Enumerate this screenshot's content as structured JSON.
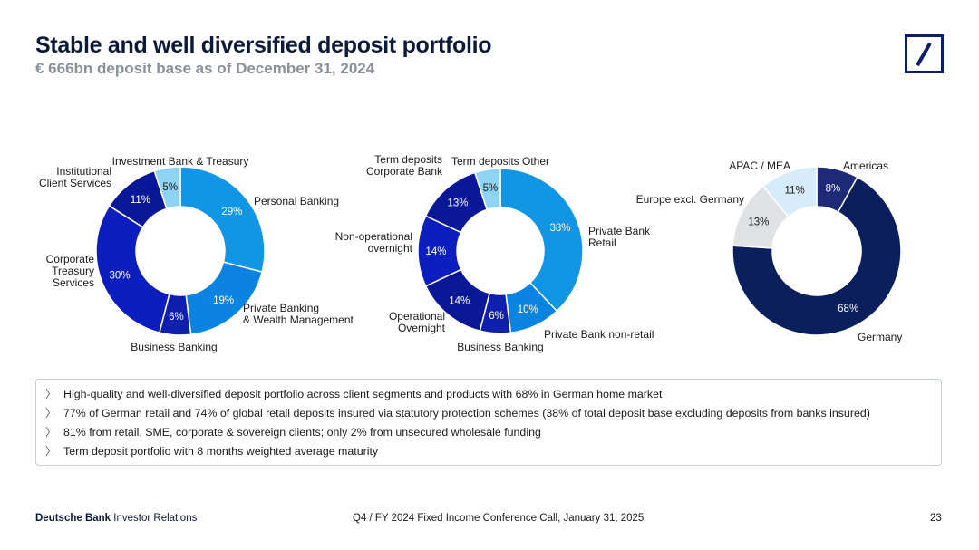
{
  "header": {
    "title": "Stable and well diversified deposit portfolio",
    "subtitle": "€ 666bn deposit base as of December 31, 2024"
  },
  "logo": {
    "icon": "deutsche-bank-logo-icon",
    "color": "#0c1f6e"
  },
  "chart_data": [
    {
      "type": "pie",
      "variant": "donut",
      "title": "",
      "labels": [
        "Personal Banking",
        "Private Banking\n& Wealth Management",
        "Business Banking",
        "Corporate\nTreasury\nServices",
        "Institutional\nClient Services",
        "Investment Bank & Treasury"
      ],
      "values": [
        29,
        19,
        6,
        30,
        11,
        5
      ],
      "value_labels": [
        "29%",
        "19%",
        "6%",
        "30%",
        "11%",
        "5%"
      ],
      "colors": [
        "#1196e6",
        "#0a84e0",
        "#0f1fae",
        "#0c1fbe",
        "#0a1898",
        "#8fd3f4"
      ]
    },
    {
      "type": "pie",
      "variant": "donut",
      "title": "",
      "labels": [
        "Private Bank\nRetail",
        "Private Bank non-retail",
        "Business Banking",
        "Operational\nOvernight",
        "Non-operational\novernight",
        "Term deposits\nCorporate Bank",
        "Term deposits Other"
      ],
      "values": [
        38,
        10,
        6,
        14,
        14,
        13,
        5
      ],
      "value_labels": [
        "38%",
        "10%",
        "6%",
        "14%",
        "14%",
        "13%",
        "5%"
      ],
      "colors": [
        "#1196e6",
        "#0a84e0",
        "#0f1fae",
        "#0a1898",
        "#0c1fbe",
        "#0a1898",
        "#8fd3f4"
      ]
    },
    {
      "type": "pie",
      "variant": "donut",
      "title": "",
      "labels": [
        "Americas",
        "Germany",
        "Europe excl. Germany",
        "APAC / MEA"
      ],
      "values": [
        8,
        68,
        13,
        11
      ],
      "value_labels": [
        "8%",
        "68%",
        "13%",
        "11%"
      ],
      "colors": [
        "#1e2a78",
        "#0a1f5c",
        "#dfe1e5",
        "#d6ecfb"
      ]
    }
  ],
  "notes": [
    "High-quality and well-diversified deposit portfolio across client segments and products with 68% in German home market",
    "77% of German retail and 74% of global retail deposits insured via statutory protection schemes (38% of total deposit base excluding deposits from banks insured)",
    "81% from retail, SME, corporate & sovereign clients; only 2% from unsecured wholesale funding",
    "Term deposit portfolio with 8 months weighted average maturity"
  ],
  "footer": {
    "brand": "Deutsche Bank",
    "brand_suffix": "Investor Relations",
    "event": "Q4 / FY 2024 Fixed Income Conference Call, January 31, 2025",
    "page": "23"
  }
}
